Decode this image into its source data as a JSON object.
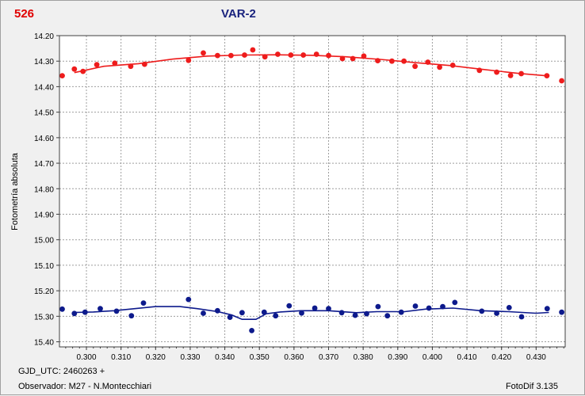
{
  "header": {
    "star_id": "526",
    "title": "VAR-2"
  },
  "footer": {
    "gjd": "GJD_UTC: 2460263 +",
    "observer": "Observador: M27 - N.Montecchiari",
    "version": "FotoDif 3.135"
  },
  "colors": {
    "background": "#ffffff",
    "grid": "#9e9e9e",
    "red_series": "#ee1c1c",
    "blue_series": "#0d1a8c",
    "title": "#1a237e",
    "star_id": "#e00000"
  },
  "chart_data": {
    "type": "scatter",
    "title": "VAR-2",
    "xlabel": "",
    "ylabel": "Fotometría absoluta",
    "xlim": [
      0.2922,
      0.4384
    ],
    "ylim": [
      14.2,
      15.42
    ],
    "y_inverted": true,
    "grid": true,
    "x_ticks": [
      "0.300",
      "0.310",
      "0.320",
      "0.330",
      "0.340",
      "0.350",
      "0.360",
      "0.370",
      "0.380",
      "0.390",
      "0.400",
      "0.410",
      "0.420",
      "0.430"
    ],
    "y_ticks": [
      "14.20",
      "14.30",
      "14.40",
      "14.50",
      "14.60",
      "14.70",
      "14.80",
      "14.90",
      "15.00",
      "15.10",
      "15.20",
      "15.30",
      "15.40"
    ],
    "series": [
      {
        "color": "#ee1c1c",
        "points": [
          [
            0.293,
            14.357
          ],
          [
            0.2965,
            14.331
          ],
          [
            0.299,
            14.34
          ],
          [
            0.303,
            14.314
          ],
          [
            0.3082,
            14.308
          ],
          [
            0.3128,
            14.32
          ],
          [
            0.3168,
            14.312
          ],
          [
            0.3295,
            14.297
          ],
          [
            0.3338,
            14.268
          ],
          [
            0.3379,
            14.278
          ],
          [
            0.3418,
            14.278
          ],
          [
            0.3457,
            14.276
          ],
          [
            0.3481,
            14.256
          ],
          [
            0.3516,
            14.283
          ],
          [
            0.3553,
            14.273
          ],
          [
            0.3591,
            14.276
          ],
          [
            0.3627,
            14.276
          ],
          [
            0.3665,
            14.273
          ],
          [
            0.37,
            14.278
          ],
          [
            0.374,
            14.29
          ],
          [
            0.377,
            14.29
          ],
          [
            0.3802,
            14.28
          ],
          [
            0.3842,
            14.298
          ],
          [
            0.3883,
            14.3
          ],
          [
            0.3918,
            14.3
          ],
          [
            0.395,
            14.32
          ],
          [
            0.3987,
            14.304
          ],
          [
            0.4021,
            14.324
          ],
          [
            0.4059,
            14.316
          ],
          [
            0.4136,
            14.336
          ],
          [
            0.4186,
            14.343
          ],
          [
            0.4226,
            14.356
          ],
          [
            0.4257,
            14.349
          ],
          [
            0.4331,
            14.357
          ],
          [
            0.4374,
            14.377
          ]
        ],
        "trend": [
          [
            0.2965,
            14.345
          ],
          [
            0.305,
            14.32
          ],
          [
            0.315,
            14.31
          ],
          [
            0.325,
            14.292
          ],
          [
            0.335,
            14.28
          ],
          [
            0.345,
            14.276
          ],
          [
            0.355,
            14.275
          ],
          [
            0.365,
            14.277
          ],
          [
            0.375,
            14.283
          ],
          [
            0.385,
            14.293
          ],
          [
            0.395,
            14.306
          ],
          [
            0.405,
            14.317
          ],
          [
            0.415,
            14.333
          ],
          [
            0.425,
            14.348
          ],
          [
            0.4337,
            14.358
          ]
        ]
      },
      {
        "color": "#0d1a8c",
        "points": [
          [
            0.293,
            15.272
          ],
          [
            0.2965,
            15.289
          ],
          [
            0.2996,
            15.284
          ],
          [
            0.304,
            15.27
          ],
          [
            0.3087,
            15.28
          ],
          [
            0.313,
            15.298
          ],
          [
            0.3165,
            15.248
          ],
          [
            0.3295,
            15.234
          ],
          [
            0.3338,
            15.288
          ],
          [
            0.3379,
            15.278
          ],
          [
            0.3415,
            15.304
          ],
          [
            0.345,
            15.286
          ],
          [
            0.3478,
            15.356
          ],
          [
            0.3514,
            15.284
          ],
          [
            0.3547,
            15.298
          ],
          [
            0.3586,
            15.259
          ],
          [
            0.3622,
            15.287
          ],
          [
            0.366,
            15.268
          ],
          [
            0.37,
            15.27
          ],
          [
            0.3738,
            15.286
          ],
          [
            0.3777,
            15.296
          ],
          [
            0.381,
            15.29
          ],
          [
            0.3843,
            15.262
          ],
          [
            0.387,
            15.298
          ],
          [
            0.391,
            15.284
          ],
          [
            0.3951,
            15.26
          ],
          [
            0.399,
            15.268
          ],
          [
            0.403,
            15.262
          ],
          [
            0.4065,
            15.246
          ],
          [
            0.4143,
            15.28
          ],
          [
            0.4186,
            15.288
          ],
          [
            0.4222,
            15.266
          ],
          [
            0.4258,
            15.302
          ],
          [
            0.4332,
            15.27
          ],
          [
            0.4374,
            15.284
          ]
        ],
        "trend": [
          [
            0.2965,
            15.285
          ],
          [
            0.302,
            15.283
          ],
          [
            0.308,
            15.278
          ],
          [
            0.314,
            15.27
          ],
          [
            0.32,
            15.262
          ],
          [
            0.327,
            15.262
          ],
          [
            0.332,
            15.27
          ],
          [
            0.338,
            15.282
          ],
          [
            0.342,
            15.295
          ],
          [
            0.345,
            15.312
          ],
          [
            0.349,
            15.312
          ],
          [
            0.352,
            15.29
          ],
          [
            0.356,
            15.283
          ],
          [
            0.362,
            15.278
          ],
          [
            0.37,
            15.278
          ],
          [
            0.378,
            15.286
          ],
          [
            0.384,
            15.282
          ],
          [
            0.392,
            15.282
          ],
          [
            0.398,
            15.272
          ],
          [
            0.406,
            15.268
          ],
          [
            0.414,
            15.278
          ],
          [
            0.422,
            15.282
          ],
          [
            0.43,
            15.288
          ],
          [
            0.4337,
            15.285
          ]
        ]
      }
    ]
  }
}
